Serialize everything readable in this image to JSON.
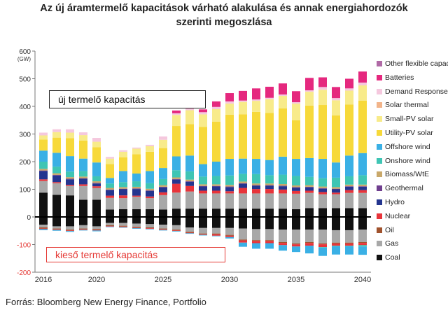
{
  "title_line1": "Az új áramtermelő kapacitások várható alakulása és annak energiahordozók",
  "title_line2": "szerinti megoszlása",
  "source": "Forrás: Bloomberg New Energy Finance, Portfolio",
  "box_new_label": "új termelő kapacitás",
  "box_retire_label": "kieső termelő kapacitás",
  "colors": {
    "Coal": "#111111",
    "Gas": "#a8a8a8",
    "Oil": "#a0522d",
    "Nuclear": "#e8343a",
    "Hydro": "#24358f",
    "Geothermal": "#6f3e8e",
    "Biomass/WtE": "#c9a86a",
    "Onshore wind": "#3fc5b4",
    "Offshore wind": "#3ab0e5",
    "Utility-PV solar": "#f7d93a",
    "Small-PV solar": "#f8eb8a",
    "Solar thermal": "#f2b48a",
    "Demand Response": "#f5c8de",
    "Batteries": "#e5287e",
    "Other flexible capacity": "#b06aa6"
  },
  "chart_data": {
    "type": "bar",
    "stacked": true,
    "ylabel": "(GW)",
    "ylim": [
      -200,
      600
    ],
    "yticks": [
      -200,
      -100,
      0,
      100,
      200,
      300,
      400,
      500,
      600
    ],
    "xticks": [
      "2016",
      "2020",
      "2025",
      "2030",
      "2035",
      "2040"
    ],
    "grid": false,
    "legend_position": "right",
    "categories": [
      "2016",
      "2017",
      "2018",
      "2019",
      "2020",
      "2021",
      "2022",
      "2023",
      "2024",
      "2025",
      "2026",
      "2027",
      "2028",
      "2029",
      "2030",
      "2031",
      "2032",
      "2033",
      "2034",
      "2035",
      "2036",
      "2037",
      "2038",
      "2039",
      "2040"
    ],
    "series": [
      {
        "name": "Coal",
        "values": [
          88,
          80,
          78,
          62,
          62,
          27,
          28,
          28,
          28,
          27,
          30,
          30,
          30,
          30,
          30,
          30,
          30,
          30,
          30,
          28,
          32,
          32,
          32,
          32,
          32
        ],
        "negatives": [
          -28,
          -34,
          -34,
          -30,
          -34,
          -22,
          -22,
          -24,
          -26,
          -28,
          -30,
          -38,
          -40,
          -40,
          -40,
          -42,
          -44,
          -44,
          -46,
          -46,
          -46,
          -46,
          -48,
          -48,
          -46
        ]
      },
      {
        "name": "Gas",
        "values": [
          42,
          42,
          34,
          50,
          43,
          42,
          40,
          45,
          40,
          52,
          58,
          62,
          55,
          55,
          55,
          55,
          55,
          55,
          55,
          56,
          55,
          50,
          50,
          55,
          55
        ],
        "negatives": [
          -10,
          -8,
          -12,
          -12,
          -10,
          -8,
          -10,
          -12,
          -12,
          -14,
          -16,
          -16,
          -20,
          -20,
          -25,
          -40,
          -40,
          -40,
          -45,
          -50,
          -45,
          -50,
          -45,
          -45,
          -45
        ]
      },
      {
        "name": "Oil",
        "values": [
          0,
          0,
          0,
          0,
          0,
          0,
          0,
          0,
          0,
          0,
          0,
          0,
          0,
          0,
          0,
          0,
          0,
          0,
          0,
          0,
          0,
          0,
          0,
          0,
          0
        ],
        "negatives": [
          -4,
          -3,
          -3,
          -3,
          -3,
          -3,
          -3,
          -3,
          -3,
          -3,
          -3,
          -3,
          -3,
          -3,
          -3,
          -3,
          -3,
          -3,
          -3,
          -3,
          -3,
          -3,
          -3,
          -3,
          -3
        ]
      },
      {
        "name": "Nuclear",
        "values": [
          6,
          4,
          4,
          6,
          6,
          8,
          10,
          4,
          6,
          10,
          32,
          20,
          10,
          10,
          8,
          20,
          16,
          16,
          14,
          10,
          8,
          8,
          6,
          10,
          10
        ],
        "negatives": [
          -2,
          -2,
          -2,
          -2,
          -2,
          -2,
          -2,
          -2,
          -2,
          -2,
          -2,
          -2,
          -2,
          -5,
          -5,
          -8,
          -8,
          -8,
          -8,
          -8,
          -10,
          -10,
          -8,
          -8,
          -8
        ]
      },
      {
        "name": "Hydro",
        "values": [
          30,
          24,
          20,
          20,
          10,
          20,
          22,
          24,
          20,
          18,
          15,
          15,
          15,
          15,
          15,
          15,
          12,
          12,
          12,
          12,
          12,
          12,
          12,
          12,
          12
        ],
        "negatives": [
          0,
          0,
          0,
          0,
          0,
          0,
          0,
          0,
          0,
          0,
          0,
          0,
          0,
          0,
          0,
          0,
          0,
          0,
          0,
          0,
          0,
          0,
          0,
          0,
          0
        ]
      },
      {
        "name": "Geothermal",
        "values": [
          2,
          2,
          2,
          2,
          2,
          2,
          2,
          2,
          2,
          2,
          2,
          2,
          2,
          2,
          2,
          2,
          2,
          2,
          2,
          2,
          2,
          2,
          2,
          2,
          2
        ],
        "negatives": [
          0,
          0,
          0,
          0,
          0,
          0,
          0,
          0,
          0,
          0,
          0,
          0,
          0,
          0,
          0,
          0,
          0,
          0,
          0,
          0,
          0,
          0,
          0,
          0,
          0
        ]
      },
      {
        "name": "Biomass/WtE",
        "values": [
          6,
          6,
          6,
          6,
          6,
          6,
          6,
          6,
          6,
          6,
          6,
          6,
          6,
          6,
          6,
          6,
          6,
          6,
          6,
          6,
          6,
          6,
          6,
          6,
          6
        ],
        "negatives": [
          0,
          0,
          0,
          0,
          0,
          0,
          0,
          0,
          0,
          0,
          0,
          0,
          0,
          0,
          0,
          0,
          0,
          0,
          0,
          0,
          0,
          0,
          0,
          0,
          0
        ]
      },
      {
        "name": "Onshore wind",
        "values": [
          26,
          24,
          20,
          20,
          18,
          16,
          18,
          20,
          20,
          22,
          26,
          30,
          28,
          30,
          34,
          28,
          34,
          30,
          34,
          34,
          30,
          30,
          34,
          30,
          34
        ],
        "negatives": [
          0,
          0,
          0,
          0,
          0,
          0,
          0,
          0,
          0,
          0,
          0,
          0,
          0,
          0,
          0,
          0,
          0,
          0,
          0,
          0,
          0,
          -2,
          -2,
          -2,
          -5
        ]
      },
      {
        "name": "Offshore wind",
        "values": [
          40,
          50,
          56,
          45,
          50,
          20,
          40,
          28,
          44,
          40,
          50,
          57,
          45,
          52,
          60,
          55,
          55,
          55,
          65,
          62,
          68,
          70,
          55,
          75,
          80
        ],
        "negatives": [
          -4,
          -3,
          -3,
          -2,
          -3,
          -2,
          -2,
          -2,
          -2,
          -2,
          -2,
          -2,
          -2,
          -2,
          -5,
          -15,
          -20,
          -20,
          -20,
          -20,
          -28,
          -30,
          -30,
          -30,
          -30
        ]
      },
      {
        "name": "Utility-PV solar",
        "values": [
          40,
          55,
          65,
          65,
          55,
          50,
          50,
          70,
          70,
          72,
          110,
          114,
          135,
          145,
          160,
          160,
          170,
          170,
          175,
          140,
          190,
          195,
          170,
          185,
          190
        ],
        "negatives": [
          0,
          0,
          0,
          0,
          0,
          0,
          0,
          0,
          0,
          0,
          0,
          0,
          0,
          0,
          0,
          0,
          0,
          0,
          0,
          0,
          0,
          0,
          0,
          0,
          0
        ]
      },
      {
        "name": "Small-PV solar",
        "values": [
          15,
          20,
          20,
          20,
          20,
          20,
          20,
          20,
          20,
          30,
          40,
          50,
          45,
          45,
          40,
          45,
          40,
          50,
          45,
          60,
          50,
          55,
          55,
          50,
          55
        ],
        "negatives": [
          0,
          0,
          0,
          0,
          0,
          0,
          0,
          0,
          0,
          0,
          0,
          0,
          0,
          0,
          0,
          0,
          0,
          0,
          0,
          0,
          0,
          0,
          0,
          0,
          0
        ]
      },
      {
        "name": "Solar thermal",
        "values": [
          0,
          0,
          0,
          0,
          0,
          0,
          0,
          0,
          0,
          0,
          0,
          0,
          0,
          0,
          0,
          0,
          0,
          0,
          0,
          0,
          0,
          0,
          0,
          0,
          0
        ],
        "negatives": [
          0,
          0,
          0,
          0,
          0,
          0,
          0,
          0,
          0,
          0,
          0,
          0,
          0,
          0,
          0,
          0,
          0,
          0,
          0,
          0,
          0,
          0,
          0,
          0,
          0
        ]
      },
      {
        "name": "Demand Response",
        "values": [
          10,
          10,
          12,
          10,
          14,
          6,
          5,
          4,
          5,
          12,
          6,
          6,
          8,
          8,
          8,
          5,
          5,
          5,
          5,
          5,
          5,
          10,
          8,
          8,
          10
        ],
        "negatives": [
          0,
          0,
          0,
          0,
          0,
          0,
          0,
          0,
          0,
          0,
          0,
          0,
          0,
          0,
          0,
          0,
          0,
          0,
          0,
          0,
          0,
          0,
          0,
          0,
          0
        ]
      },
      {
        "name": "Batteries",
        "values": [
          0,
          0,
          0,
          0,
          0,
          0,
          0,
          0,
          0,
          0,
          10,
          20,
          10,
          20,
          30,
          35,
          40,
          40,
          40,
          40,
          45,
          35,
          40,
          35,
          40
        ],
        "negatives": [
          0,
          0,
          0,
          0,
          0,
          0,
          0,
          0,
          0,
          0,
          0,
          0,
          0,
          0,
          0,
          0,
          0,
          0,
          0,
          0,
          0,
          0,
          0,
          0,
          0
        ]
      },
      {
        "name": "Other flexible capacity",
        "values": [
          0,
          0,
          0,
          0,
          0,
          0,
          0,
          0,
          0,
          0,
          0,
          0,
          0,
          0,
          0,
          0,
          0,
          0,
          0,
          0,
          0,
          0,
          0,
          0,
          0
        ],
        "negatives": [
          0,
          0,
          0,
          0,
          0,
          0,
          0,
          0,
          0,
          0,
          0,
          0,
          0,
          0,
          0,
          0,
          0,
          0,
          0,
          0,
          0,
          0,
          0,
          0,
          0
        ]
      }
    ]
  }
}
